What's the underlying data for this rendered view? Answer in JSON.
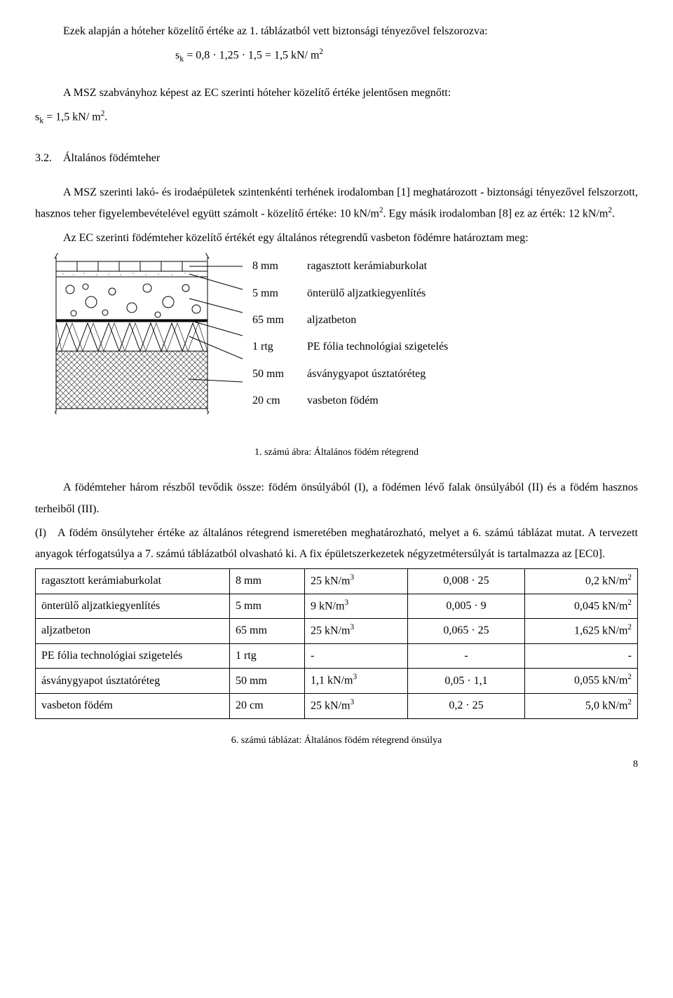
{
  "intro": {
    "p1": "Ezek alapján a hóteher közelítő értéke az 1. táblázatból vett biztonsági tényezővel felszorozva:",
    "formula1_prefix": "s",
    "formula1_sub": "k",
    "formula1_body": " = 0,8 · 1,25 · 1,5 = 1,5 kN/ m",
    "p2": "A MSZ szabványhoz képest az EC szerinti hóteher közelítő értéke jelentősen megnőtt:",
    "formula2_prefix": "s",
    "formula2_sub": "k",
    "formula2_body": " = 1,5 kN/ m",
    "formula2_suffix": "."
  },
  "section": {
    "num": "3.2.",
    "title": "Általános födémteher"
  },
  "body": {
    "p1": "A MSZ szerinti lakó- és irodaépületek szintenkénti terhének irodalomban [1] meghatározott - biztonsági tényezővel felszorzott, hasznos teher figyelembevételével együtt számolt - közelítő értéke: 10 kN/m². Egy másik irodalomban [8] ez az érték: 12 kN/m².",
    "p2": "Az EC szerinti födémteher közelítő értékét egy általános rétegrendű vasbeton födémre határoztam meg:"
  },
  "layers": [
    {
      "thk": "8 mm",
      "name": "ragasztott kerámiaburkolat"
    },
    {
      "thk": "5 mm",
      "name": "önterülő aljzatkiegyenlítés"
    },
    {
      "thk": "65 mm",
      "name": "aljzatbeton"
    },
    {
      "thk": "1 rtg",
      "name": "PE fólia technológiai szigetelés"
    },
    {
      "thk": "50 mm",
      "name": "ásványgyapot úsztatóréteg"
    },
    {
      "thk": "20 cm",
      "name": "vasbeton födém"
    }
  ],
  "figure_caption": "1. számú ábra: Általános födém rétegrend",
  "after_fig": {
    "p1": "A födémteher három részből tevődik össze: födém önsúlyából (I), a födémen lévő falak önsúlyából (II) és a födém hasznos terheiből (III).",
    "p2": "(I) A födém önsúlyteher értéke az általános rétegrend ismeretében meghatározható, melyet a 6. számú táblázat mutat. A tervezett anyagok térfogatsúlya a 7. számú táblázatból olvasható ki. A fix épületszerkezetek négyzetmétersúlyát is tartalmazza az [EC0]."
  },
  "table": {
    "rows": [
      {
        "c1": "ragasztott kerámiaburkolat",
        "c2": "8 mm",
        "c3": "25 kN/m³",
        "c4": "0,008 · 25",
        "c5": "0,2 kN/m²"
      },
      {
        "c1": "önterülő aljzatkiegyenlítés",
        "c2": "5 mm",
        "c3": "9  kN/m³",
        "c4": "0,005 · 9",
        "c5": "0,045 kN/m²"
      },
      {
        "c1": "aljzatbeton",
        "c2": "65 mm",
        "c3": "25 kN/m³",
        "c4": "0,065 · 25",
        "c5": "1,625 kN/m²"
      },
      {
        "c1": "PE fólia technológiai szigetelés",
        "c2": "1 rtg",
        "c3": "-",
        "c4": "-",
        "c5": "-"
      },
      {
        "c1": "ásványgyapot úsztatóréteg",
        "c2": "50 mm",
        "c3": "1,1 kN/m³",
        "c4": "0,05 · 1,1",
        "c5": "0,055 kN/m²"
      },
      {
        "c1": "vasbeton födém",
        "c2": "20 cm",
        "c3": "25 kN/m³",
        "c4": "0,2 · 25",
        "c5": "5,0 kN/m²"
      }
    ],
    "caption": "6. számú táblázat: Általános födém rétegrend önsúlya"
  },
  "pagenum": "8",
  "diagram_style": {
    "bg": "#ffffff",
    "stroke": "#000000",
    "hatch": "#000000",
    "dot_fill": "#bdbdbd"
  }
}
